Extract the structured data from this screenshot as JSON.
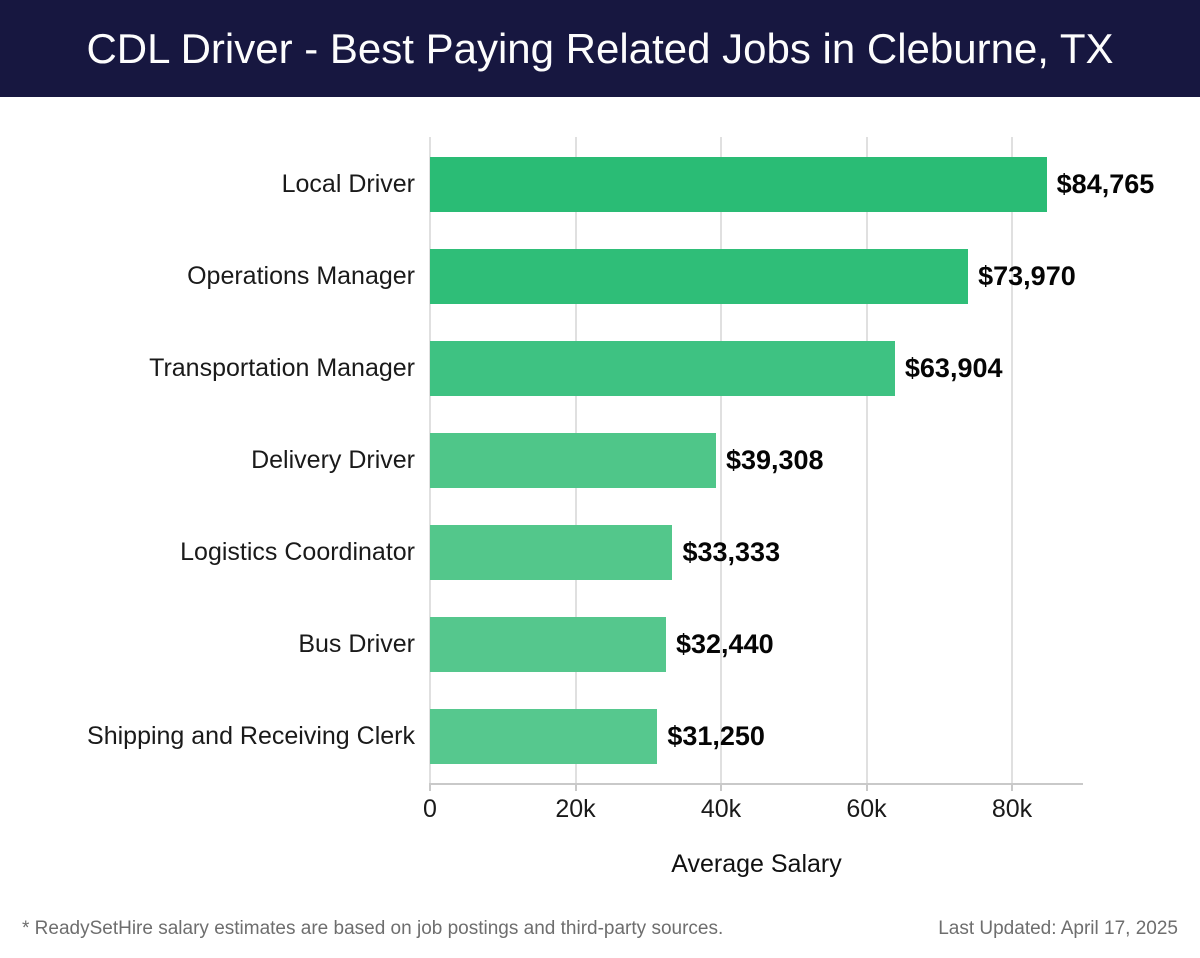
{
  "header": {
    "title": "CDL Driver - Best Paying Related Jobs in Cleburne, TX",
    "bg_color": "#171740",
    "text_color": "#fdfdfd"
  },
  "chart_data": {
    "type": "bar",
    "orientation": "horizontal",
    "title": "CDL Driver - Best Paying Related Jobs in Cleburne, TX",
    "categories": [
      "Local Driver",
      "Operations Manager",
      "Transportation Manager",
      "Delivery Driver",
      "Logistics Coordinator",
      "Bus Driver",
      "Shipping and Receiving Clerk"
    ],
    "values": [
      84765,
      73970,
      63904,
      39308,
      33333,
      32440,
      31250
    ],
    "value_labels": [
      "$84,765",
      "$73,970",
      "$63,904",
      "$39,308",
      "$33,333",
      "$32,440",
      "$31,250"
    ],
    "bar_colors": [
      "#2abc75",
      "#2fbe78",
      "#3ec282",
      "#4fc689",
      "#53c78b",
      "#55c78d",
      "#56c88e"
    ],
    "xlabel": "Average Salary",
    "ylabel": "",
    "xlim": [
      0,
      89800
    ],
    "x_ticks": [
      {
        "label": "0",
        "value": 0
      },
      {
        "label": "20k",
        "value": 20000
      },
      {
        "label": "40k",
        "value": 40000
      },
      {
        "label": "60k",
        "value": 60000
      },
      {
        "label": "80k",
        "value": 80000
      }
    ],
    "grid": "vertical",
    "gridline_color": "#e0e0e0",
    "axis_color": "#c9c9c9",
    "legend": "none"
  },
  "footer": {
    "source_note": "* ReadySetHire salary estimates are based on job postings and third-party sources.",
    "last_updated": "Last Updated: April 17, 2025"
  }
}
